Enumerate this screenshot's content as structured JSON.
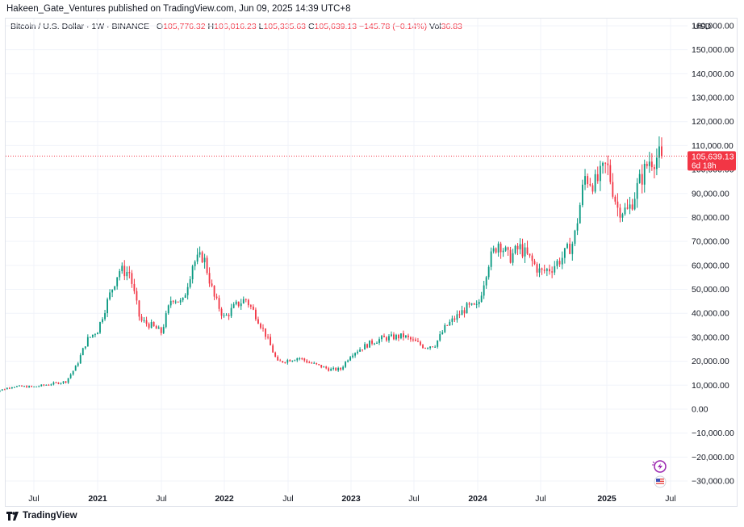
{
  "header": {
    "published": "Hakeen_Gate_Ventures published on TradingView.com, Jun 09, 2025 14:39 UTC+8"
  },
  "legend": {
    "symbol": "Bitcoin / U.S. Dollar · 1W · BINANCE",
    "o_label": "O",
    "o_value": "105,776.32",
    "h_label": "H",
    "h_value": "106,016.23",
    "l_label": "L",
    "l_value": "105,335.63",
    "c_label": "C",
    "c_value": "105,639.13",
    "change": "−145.78 (−0.14%)",
    "vol_label": "Vol",
    "vol_value": "36.83"
  },
  "currency": "USD",
  "price_tag": {
    "price": "105,639.13",
    "countdown": "6d 18h"
  },
  "footer": {
    "brand": "TradingView"
  },
  "colors": {
    "up": "#089981",
    "down": "#f23645",
    "grid": "#f0f3fa",
    "text": "#131722",
    "alert_icon": "#9c27b0"
  },
  "icons": [
    "lightning-alert-icon",
    "us-flag-event-icon",
    "tradingview-logo-icon"
  ],
  "chart_data": {
    "type": "candlestick",
    "x_range": [
      "2020-03",
      "2025-07"
    ],
    "ylim": [
      -35000,
      165000
    ],
    "y_ticks": [
      "160,000.00",
      "150,000.00",
      "140,000.00",
      "130,000.00",
      "120,000.00",
      "110,000.00",
      "100,000.00",
      "90,000.00",
      "80,000.00",
      "70,000.00",
      "60,000.00",
      "50,000.00",
      "40,000.00",
      "30,000.00",
      "20,000.00",
      "10,000.00",
      "0.00",
      "−10,000.00",
      "−20,000.00",
      "−30,000.00"
    ],
    "y_tick_values": [
      160000,
      150000,
      140000,
      130000,
      120000,
      110000,
      100000,
      90000,
      80000,
      70000,
      60000,
      50000,
      40000,
      30000,
      20000,
      10000,
      0,
      -10000,
      -20000,
      -30000
    ],
    "x_ticks": [
      "Jul",
      "2021",
      "Jul",
      "2022",
      "Jul",
      "2023",
      "Jul",
      "2024",
      "Jul",
      "2025",
      "Jul"
    ],
    "x_tick_dates": [
      "2020-07",
      "2021-01",
      "2021-07",
      "2022-01",
      "2022-07",
      "2023-01",
      "2023-07",
      "2024-01",
      "2024-07",
      "2025-01",
      "2025-07"
    ],
    "current_price": 105639.13,
    "anchors": [
      [
        "2020-03",
        6800
      ],
      [
        "2020-05",
        9500
      ],
      [
        "2020-07",
        9300
      ],
      [
        "2020-09",
        10800
      ],
      [
        "2020-10",
        11500
      ],
      [
        "2020-11",
        18000
      ],
      [
        "2020-12",
        28900
      ],
      [
        "2021-01",
        33000
      ],
      [
        "2021-02",
        46000
      ],
      [
        "2021-03",
        58000
      ],
      [
        "2021-04",
        57000
      ],
      [
        "2021-05",
        37000
      ],
      [
        "2021-06",
        35000
      ],
      [
        "2021-07",
        32000
      ],
      [
        "2021-08",
        47000
      ],
      [
        "2021-09",
        44000
      ],
      [
        "2021-10",
        61000
      ],
      [
        "2021-11",
        64000
      ],
      [
        "2021-12",
        47000
      ],
      [
        "2022-01",
        38000
      ],
      [
        "2022-02",
        43000
      ],
      [
        "2022-03",
        46000
      ],
      [
        "2022-04",
        39000
      ],
      [
        "2022-05",
        30000
      ],
      [
        "2022-06",
        19500
      ],
      [
        "2022-08",
        21500
      ],
      [
        "2022-09",
        19500
      ],
      [
        "2022-11",
        16500
      ],
      [
        "2022-12",
        16600
      ],
      [
        "2023-01",
        23000
      ],
      [
        "2023-03",
        28000
      ],
      [
        "2023-04",
        29500
      ],
      [
        "2023-06",
        30500
      ],
      [
        "2023-08",
        26000
      ],
      [
        "2023-09",
        27000
      ],
      [
        "2023-10",
        34500
      ],
      [
        "2023-12",
        42500
      ],
      [
        "2024-01",
        42500
      ],
      [
        "2024-02",
        61000
      ],
      [
        "2024-03",
        70000
      ],
      [
        "2024-04",
        63000
      ],
      [
        "2024-05",
        67500
      ],
      [
        "2024-06",
        62500
      ],
      [
        "2024-07",
        57000
      ],
      [
        "2024-08",
        59000
      ],
      [
        "2024-09",
        63500
      ],
      [
        "2024-10",
        70000
      ],
      [
        "2024-11",
        97000
      ],
      [
        "2024-12",
        94000
      ],
      [
        "2025-01",
        102000
      ],
      [
        "2025-02",
        84000
      ],
      [
        "2025-03",
        82500
      ],
      [
        "2025-04",
        94000
      ],
      [
        "2025-05",
        104000
      ],
      [
        "2025-06",
        105639
      ]
    ]
  }
}
